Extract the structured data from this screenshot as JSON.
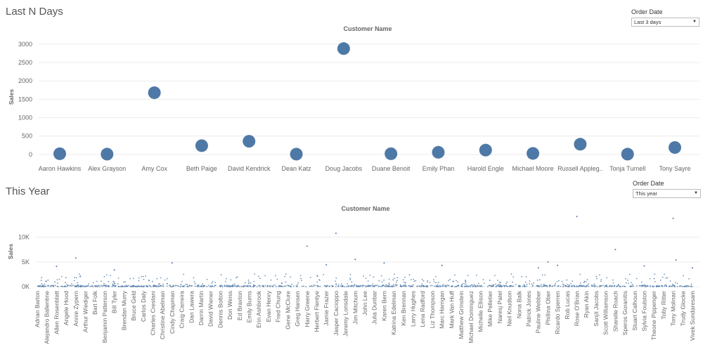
{
  "sections": {
    "top_title": "Last N Days",
    "bottom_title": "This Year"
  },
  "filters": {
    "top": {
      "label": "Order Date",
      "value": "Last 3 days"
    },
    "bottom": {
      "label": "Order Date",
      "value": "This year"
    }
  },
  "colors": {
    "mark": "#4e79a7",
    "grid": "#ececec",
    "text": "#666666"
  },
  "chart_data": [
    {
      "type": "scatter",
      "title": "Customer Name",
      "xlabel": "",
      "ylabel": "Sales",
      "ylim": [
        -250,
        3150
      ],
      "yticks": [
        0,
        500,
        1000,
        1500,
        2000,
        2500,
        3000
      ],
      "grid": true,
      "categories": [
        "Aaron Hawkins",
        "Alex Grayson",
        "Amy Cox",
        "Beth Paige",
        "David Kendrick",
        "Dean Katz",
        "Doug Jacobs",
        "Duane Benoit",
        "Emily Phan",
        "Harold Engle",
        "Michael Moore",
        "Russell Appleg..",
        "Tonja Turnell",
        "Tony Sayre"
      ],
      "values": [
        20,
        10,
        1680,
        240,
        360,
        10,
        2880,
        20,
        60,
        120,
        30,
        280,
        10,
        190
      ]
    },
    {
      "type": "scatter",
      "title": "Customer Name",
      "xlabel": "",
      "ylabel": "Sales",
      "ylim": [
        0,
        14500
      ],
      "yticks": [
        0,
        5000,
        10000
      ],
      "ytick_labels": [
        "0K",
        "5K",
        "10K"
      ],
      "grid": true,
      "categories": [
        "Adrian Barton",
        "Alejandro Ballentine",
        "Allen Rosenblatt",
        "Angele Hood",
        "Annie Zypern",
        "Arthur Wiediger",
        "Bart Folk",
        "Benjamin Patterson",
        "Bill Tyler",
        "Brendan Murry",
        "Bruce Geld",
        "Carlos Daly",
        "Charles Crestani",
        "Christine Abelman",
        "Cindy Chapman",
        "Craig Carreira",
        "Dan Lawera",
        "Darrin Martin",
        "David Wiener",
        "Dennis Bolton",
        "Don Weiss",
        "Ed Braxton",
        "Emily Burns",
        "Erin Ashbrook",
        "Evan Henry",
        "Fred Chung",
        "Gene McClure",
        "Greg Hansen",
        "Harry Greene",
        "Herbert Flentye",
        "Jamie Frazer",
        "Jasper Cacioppo",
        "Jeremy Lonsdale",
        "Jim Mitchum",
        "John Lee",
        "Julia Dunbar",
        "Karen Bern",
        "Katrina Edelman",
        "Ken Brennan",
        "Larry Hughes",
        "Lena Radford",
        "Liz Thompson",
        "Marc Harrigan",
        "Mark Van Huff",
        "Matthew Grinstein",
        "Michael Dominguez",
        "Michelle Ellison",
        "Mike Pelletier",
        "Naresj Patel",
        "Neil Knudson",
        "Nona Balk",
        "Patrick Jones",
        "Pauline Webber",
        "Phillina Ober",
        "Ricardo Sperren",
        "Rob Lucas",
        "Rose O'Brian",
        "Ryan Akin",
        "Sanjit Jacobs",
        "Scott Williamson",
        "Sharelle Roach",
        "Speros Goranitis",
        "Stuart Calhoun",
        "Sylvia Foulston",
        "Theone Pippenger",
        "Toby Ritter",
        "Tony Molinari",
        "Trudy Glocke",
        "Vivek Sundaresam"
      ],
      "outliers": [
        {
          "x": 8,
          "y": 3400
        },
        {
          "x": 2,
          "y": 4100
        },
        {
          "x": 4,
          "y": 5800
        },
        {
          "x": 14,
          "y": 4800
        },
        {
          "x": 28,
          "y": 8200
        },
        {
          "x": 30,
          "y": 4400
        },
        {
          "x": 31,
          "y": 10800
        },
        {
          "x": 33,
          "y": 5500
        },
        {
          "x": 36,
          "y": 4800
        },
        {
          "x": 42,
          "y": 4300
        },
        {
          "x": 52,
          "y": 3800
        },
        {
          "x": 53,
          "y": 5000
        },
        {
          "x": 54,
          "y": 4300
        },
        {
          "x": 56,
          "y": 14200
        },
        {
          "x": 60,
          "y": 7500
        },
        {
          "x": 63,
          "y": 4200
        },
        {
          "x": 66,
          "y": 13800
        },
        {
          "x": 66.3,
          "y": 5400
        },
        {
          "x": 68,
          "y": 3800
        }
      ]
    }
  ]
}
